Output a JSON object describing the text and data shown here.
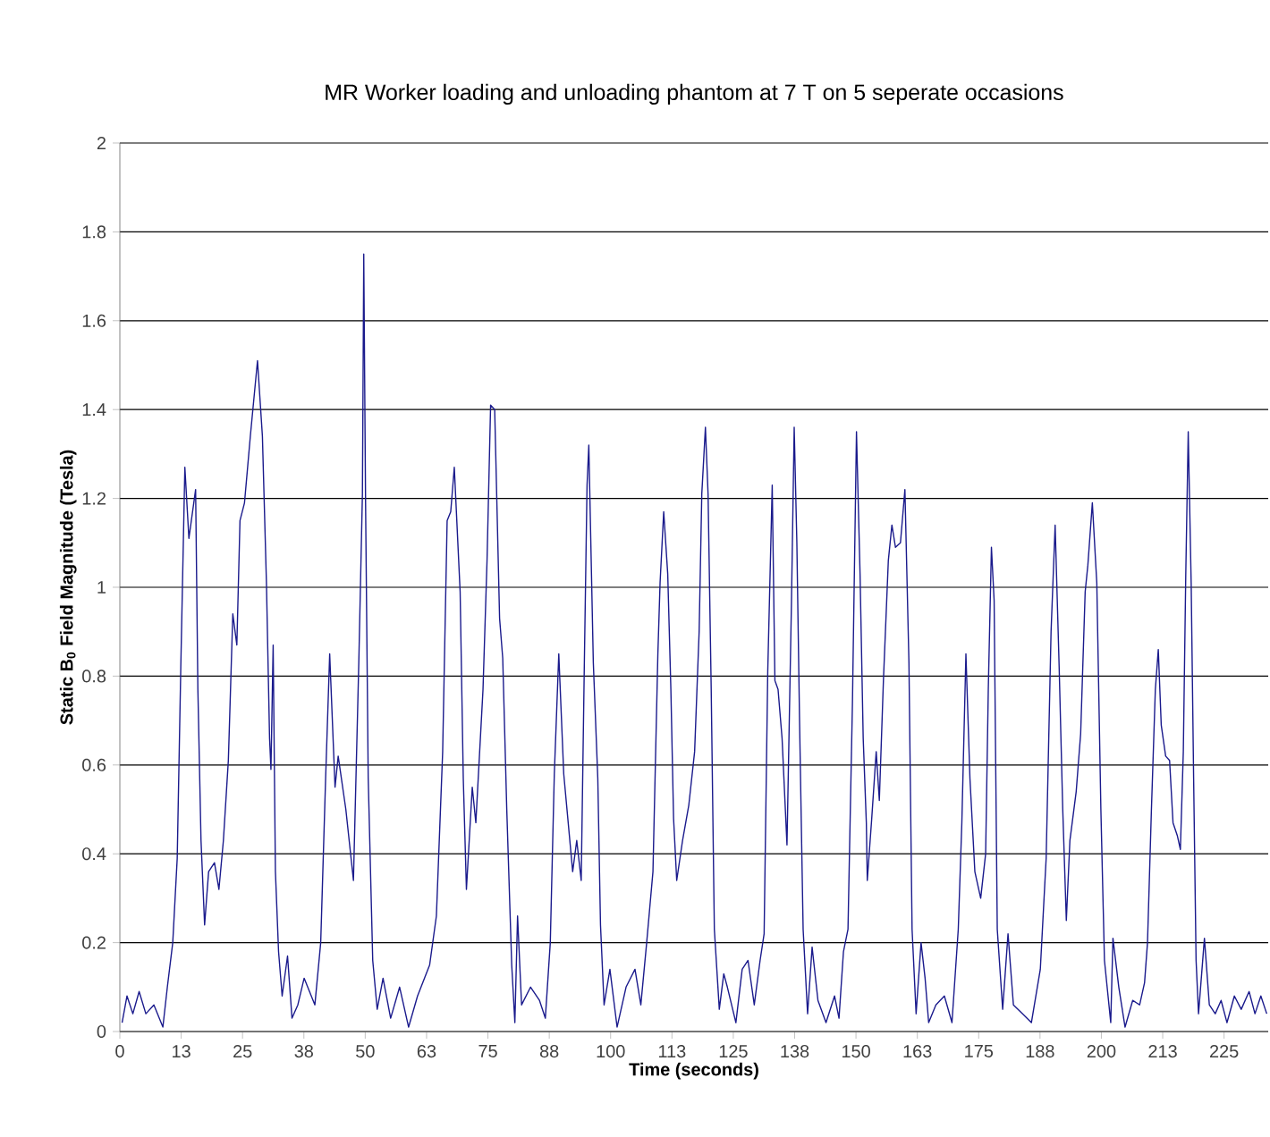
{
  "chart_data": {
    "type": "line",
    "title": "MR Worker loading and unloading phantom at 7 T on 5 seperate occasions",
    "xlabel": "Time (seconds)",
    "ylabel": "Static B$_{0}$ Field Magnitude (Tesla)",
    "x": [
      0.46,
      1.46,
      2.65,
      3.93,
      5.3,
      6.94,
      8.77,
      9.68,
      10.78,
      11.69,
      12.42,
      13.25,
      14.07,
      15.44,
      15.9,
      16.54,
      17.27,
      18.09,
      19.28,
      20.19,
      21.1,
      22.11,
      23.02,
      23.84,
      24.48,
      25.4,
      26.59,
      28.05,
      29.05,
      29.87,
      30.51,
      30.79,
      31.24,
      31.7,
      32.34,
      33.07,
      34.17,
      35.08,
      36.27,
      37.55,
      39.74,
      40.93,
      41.93,
      42.76,
      43.85,
      44.49,
      46.05,
      47.6,
      48.69,
      49.43,
      49.7,
      50.07,
      50.61,
      51.53,
      52.44,
      53.63,
      55.18,
      57.01,
      58.84,
      60.66,
      63.13,
      64.5,
      65.78,
      66.69,
      67.42,
      68.15,
      69.34,
      69.98,
      70.62,
      71.81,
      72.54,
      74.0,
      74.82,
      75.55,
      76.38,
      77.38,
      78.02,
      78.84,
      79.85,
      80.49,
      81.04,
      81.86,
      83.69,
      85.51,
      86.7,
      87.71,
      88.53,
      89.44,
      90.45,
      91.36,
      92.27,
      93.1,
      94.01,
      94.65,
      95.2,
      95.56,
      96.48,
      97.39,
      97.94,
      98.67,
      99.86,
      101.32,
      103.15,
      104.97,
      106.16,
      107.35,
      108.63,
      109.63,
      110.08,
      110.82,
      111.64,
      112.28,
      112.83,
      113.47,
      114.66,
      115.94,
      117.12,
      118.04,
      118.58,
      119.32,
      119.86,
      120.5,
      121.14,
      122.15,
      123.06,
      123.79,
      125.53,
      126.81,
      128.0,
      129.27,
      130.46,
      131.28,
      132.02,
      132.93,
      133.48,
      134.12,
      134.94,
      135.94,
      136.86,
      137.41,
      137.95,
      138.5,
      139.23,
      140.14,
      141.06,
      142.25,
      143.89,
      145.63,
      146.54,
      147.45,
      148.37,
      149.28,
      150.1,
      150.83,
      151.47,
      152.11,
      152.3,
      153.21,
      154.12,
      154.76,
      155.59,
      156.59,
      157.32,
      158.05,
      159.06,
      159.97,
      160.79,
      161.43,
      162.25,
      163.26,
      164.08,
      164.81,
      166.28,
      168.01,
      169.56,
      170.84,
      171.57,
      172.4,
      173.22,
      174.22,
      175.41,
      176.42,
      176.96,
      177.6,
      178.15,
      178.79,
      179.89,
      180.98,
      182.08,
      183.91,
      185.74,
      187.56,
      188.75,
      189.75,
      190.58,
      191.4,
      192.13,
      192.86,
      193.59,
      194.87,
      195.78,
      196.7,
      197.25,
      198.16,
      199.07,
      199.9,
      200.63,
      201.91,
      202.36,
      203.55,
      204.83,
      206.38,
      207.8,
      208.8,
      209.4,
      210.2,
      211.0,
      211.6,
      212.2,
      213.1,
      213.9,
      214.6,
      215.5,
      216.1,
      216.7,
      217.2,
      217.7,
      218.3,
      218.8,
      219.3,
      219.8,
      221.0,
      222.0,
      223.2,
      224.4,
      225.6,
      227.1,
      228.5,
      230.1,
      231.3,
      232.5,
      233.7
    ],
    "series": [
      {
        "color": "#1a1a8c",
        "values": [
          0.02,
          0.08,
          0.04,
          0.09,
          0.04,
          0.06,
          0.01,
          0.1,
          0.2,
          0.39,
          0.82,
          1.27,
          1.11,
          1.22,
          0.77,
          0.43,
          0.24,
          0.36,
          0.38,
          0.32,
          0.43,
          0.61,
          0.94,
          0.87,
          1.15,
          1.19,
          1.34,
          1.51,
          1.34,
          1.01,
          0.66,
          0.59,
          0.87,
          0.36,
          0.18,
          0.08,
          0.17,
          0.03,
          0.06,
          0.12,
          0.06,
          0.2,
          0.57,
          0.85,
          0.55,
          0.62,
          0.5,
          0.34,
          0.83,
          1.21,
          1.75,
          1.19,
          0.57,
          0.16,
          0.05,
          0.12,
          0.03,
          0.1,
          0.01,
          0.08,
          0.15,
          0.26,
          0.63,
          1.15,
          1.17,
          1.27,
          0.99,
          0.57,
          0.32,
          0.55,
          0.47,
          0.77,
          1.06,
          1.41,
          1.4,
          0.93,
          0.84,
          0.5,
          0.15,
          0.02,
          0.26,
          0.06,
          0.1,
          0.07,
          0.03,
          0.2,
          0.58,
          0.85,
          0.58,
          0.47,
          0.36,
          0.43,
          0.34,
          0.83,
          1.23,
          1.32,
          0.83,
          0.57,
          0.24,
          0.06,
          0.14,
          0.01,
          0.1,
          0.14,
          0.06,
          0.2,
          0.36,
          0.85,
          1.01,
          1.17,
          1.03,
          0.77,
          0.48,
          0.34,
          0.43,
          0.51,
          0.63,
          0.9,
          1.21,
          1.36,
          1.21,
          0.77,
          0.23,
          0.05,
          0.13,
          0.1,
          0.02,
          0.14,
          0.16,
          0.06,
          0.16,
          0.22,
          0.81,
          1.23,
          0.79,
          0.77,
          0.66,
          0.42,
          0.97,
          1.36,
          1.1,
          0.7,
          0.23,
          0.04,
          0.19,
          0.07,
          0.02,
          0.08,
          0.03,
          0.18,
          0.23,
          0.74,
          1.35,
          1.03,
          0.66,
          0.47,
          0.34,
          0.48,
          0.63,
          0.52,
          0.79,
          1.06,
          1.14,
          1.09,
          1.1,
          1.22,
          0.83,
          0.23,
          0.04,
          0.2,
          0.12,
          0.02,
          0.06,
          0.08,
          0.02,
          0.23,
          0.47,
          0.85,
          0.57,
          0.36,
          0.3,
          0.4,
          0.77,
          1.09,
          0.97,
          0.23,
          0.05,
          0.22,
          0.06,
          0.04,
          0.02,
          0.14,
          0.39,
          0.9,
          1.14,
          0.82,
          0.5,
          0.25,
          0.43,
          0.54,
          0.67,
          0.99,
          1.05,
          1.19,
          1.01,
          0.5,
          0.16,
          0.02,
          0.21,
          0.1,
          0.01,
          0.07,
          0.06,
          0.11,
          0.2,
          0.5,
          0.77,
          0.86,
          0.69,
          0.62,
          0.61,
          0.47,
          0.44,
          0.41,
          0.63,
          1.03,
          1.35,
          1.01,
          0.57,
          0.16,
          0.04,
          0.21,
          0.06,
          0.04,
          0.07,
          0.02,
          0.08,
          0.05,
          0.09,
          0.04,
          0.08,
          0.04
        ]
      }
    ],
    "xlim": [
      0,
      234
    ],
    "ylim": [
      0,
      2
    ],
    "xticks": [
      0,
      {
        "value": 12.5,
        "label": "13"
      },
      25,
      {
        "value": 37.5,
        "label": "38"
      },
      50,
      {
        "value": 62.5,
        "label": "63"
      },
      75,
      {
        "value": 87.5,
        "label": "88"
      },
      100,
      {
        "value": 112.5,
        "label": "113"
      },
      125,
      {
        "value": 137.5,
        "label": "138"
      },
      150,
      {
        "value": 162.5,
        "label": "163"
      },
      175,
      {
        "value": 187.5,
        "label": "188"
      },
      200,
      {
        "value": 212.5,
        "label": "213"
      },
      225
    ],
    "yticks": [
      0,
      0.2,
      0.4,
      0.6,
      0.8,
      1,
      1.2,
      1.4,
      1.6,
      1.8,
      2
    ],
    "grid": "y",
    "marker": "none",
    "line_style": "solid"
  }
}
